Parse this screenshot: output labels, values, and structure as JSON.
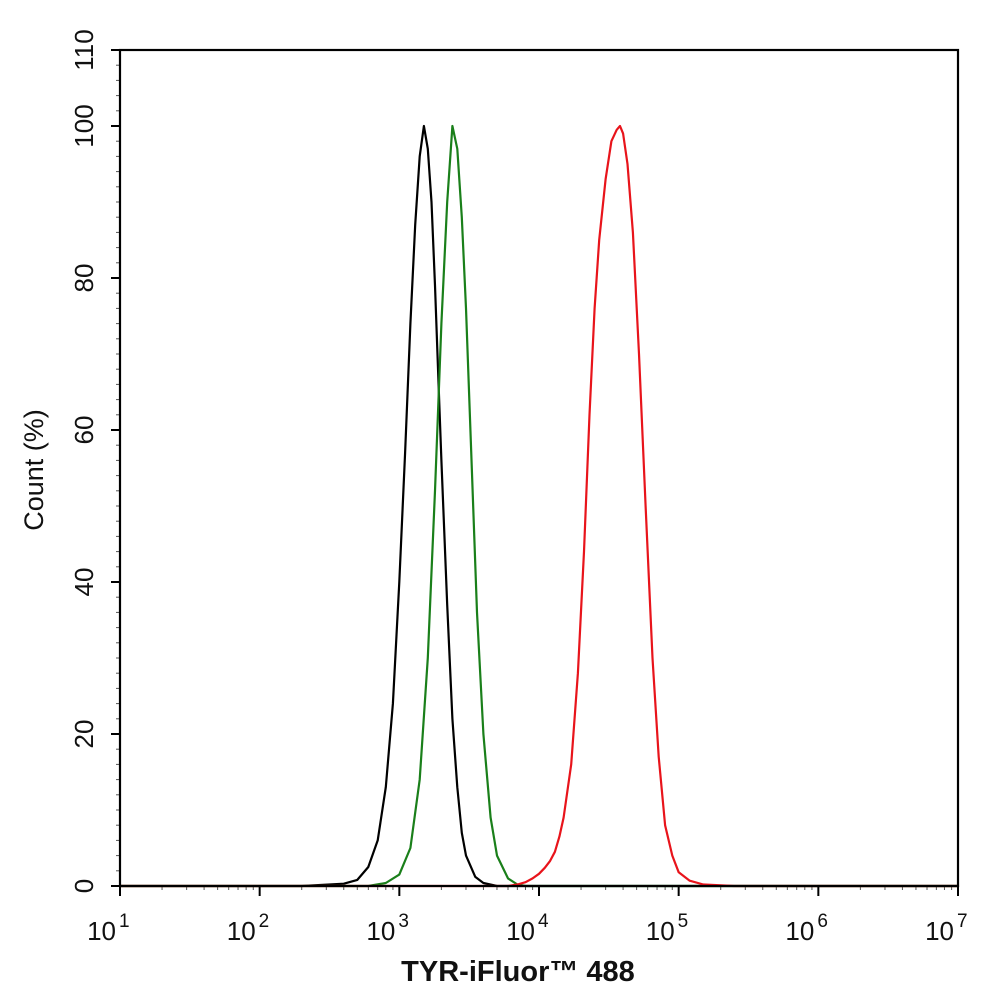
{
  "chart_data": {
    "type": "line",
    "xlabel": "TYR-iFluor™ 488",
    "ylabel": "Count  (%)",
    "x_scale": "log",
    "xlim": [
      10,
      10000000
    ],
    "ylim": [
      0,
      110
    ],
    "x_ticks": [
      {
        "base": "10",
        "exp": "1"
      },
      {
        "base": "10",
        "exp": "2"
      },
      {
        "base": "10",
        "exp": "3"
      },
      {
        "base": "10",
        "exp": "4"
      },
      {
        "base": "10",
        "exp": "5"
      },
      {
        "base": "10",
        "exp": "6"
      },
      {
        "base": "10",
        "exp": "7"
      }
    ],
    "y_ticks": [
      "0",
      "20",
      "40",
      "60",
      "80",
      "100",
      "110"
    ],
    "grid": false,
    "legend": "none",
    "series": [
      {
        "color": "#000000",
        "points": [
          [
            10,
            0
          ],
          [
            200,
            0
          ],
          [
            400,
            0.3
          ],
          [
            500,
            0.8
          ],
          [
            600,
            2.5
          ],
          [
            700,
            6
          ],
          [
            800,
            13
          ],
          [
            900,
            24
          ],
          [
            1000,
            40
          ],
          [
            1100,
            57
          ],
          [
            1200,
            74
          ],
          [
            1300,
            87
          ],
          [
            1400,
            96
          ],
          [
            1500,
            100
          ],
          [
            1600,
            97
          ],
          [
            1700,
            90
          ],
          [
            1800,
            79
          ],
          [
            1900,
            67
          ],
          [
            2000,
            56
          ],
          [
            2200,
            37
          ],
          [
            2400,
            22
          ],
          [
            2600,
            13
          ],
          [
            2800,
            7
          ],
          [
            3000,
            4
          ],
          [
            3500,
            1.2
          ],
          [
            4000,
            0.4
          ],
          [
            5000,
            0
          ],
          [
            10000000,
            0
          ]
        ]
      },
      {
        "color": "#1a7f1a",
        "points": [
          [
            10,
            0
          ],
          [
            600,
            0
          ],
          [
            800,
            0.4
          ],
          [
            1000,
            1.5
          ],
          [
            1200,
            5
          ],
          [
            1400,
            14
          ],
          [
            1600,
            30
          ],
          [
            1800,
            52
          ],
          [
            2000,
            74
          ],
          [
            2200,
            90
          ],
          [
            2400,
            100
          ],
          [
            2600,
            97
          ],
          [
            2800,
            88
          ],
          [
            3000,
            76
          ],
          [
            3300,
            55
          ],
          [
            3600,
            36
          ],
          [
            4000,
            20
          ],
          [
            4500,
            9
          ],
          [
            5000,
            4
          ],
          [
            6000,
            1
          ],
          [
            7000,
            0.2
          ],
          [
            8000,
            0
          ],
          [
            10000000,
            0
          ]
        ]
      },
      {
        "color": "#e8141b",
        "points": [
          [
            10,
            0
          ],
          [
            6000,
            0
          ],
          [
            7000,
            0.2
          ],
          [
            8000,
            0.5
          ],
          [
            9000,
            1
          ],
          [
            10000,
            1.6
          ],
          [
            11000,
            2.4
          ],
          [
            12000,
            3.3
          ],
          [
            13000,
            4.5
          ],
          [
            14000,
            6.5
          ],
          [
            15000,
            9
          ],
          [
            17000,
            16
          ],
          [
            19000,
            28
          ],
          [
            21000,
            44
          ],
          [
            23000,
            62
          ],
          [
            25000,
            76
          ],
          [
            27000,
            85
          ],
          [
            30000,
            93
          ],
          [
            33000,
            98
          ],
          [
            36000,
            99.5
          ],
          [
            38000,
            100
          ],
          [
            40000,
            99
          ],
          [
            43000,
            95
          ],
          [
            47000,
            86
          ],
          [
            52000,
            70
          ],
          [
            58000,
            50
          ],
          [
            65000,
            30
          ],
          [
            72000,
            17
          ],
          [
            80000,
            8
          ],
          [
            90000,
            4
          ],
          [
            100000,
            1.8
          ],
          [
            120000,
            0.7
          ],
          [
            150000,
            0.2
          ],
          [
            250000,
            0
          ],
          [
            10000000,
            0
          ]
        ]
      }
    ]
  }
}
